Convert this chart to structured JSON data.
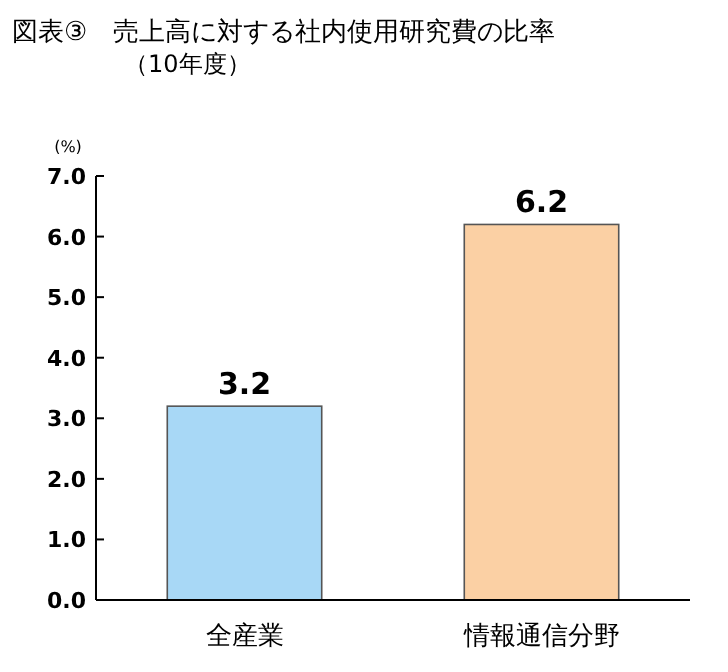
{
  "chart_data": {
    "type": "bar",
    "title": "図表③　売上高に対する社内使用研究費の比率",
    "subtitle": "（10年度）",
    "ylabel": "(%)",
    "categories": [
      "全産業",
      "情報通信分野"
    ],
    "values": [
      3.2,
      6.2
    ],
    "colors": [
      "#a8d8f6",
      "#fbd0a4"
    ],
    "ylim": [
      0,
      7
    ],
    "yticks": [
      {
        "value": 0,
        "label": "0.0"
      },
      {
        "value": 1,
        "label": "1.0"
      },
      {
        "value": 2,
        "label": "2.0"
      },
      {
        "value": 3,
        "label": "3.0"
      },
      {
        "value": 4,
        "label": "4.0"
      },
      {
        "value": 5,
        "label": "5.0"
      },
      {
        "value": 6,
        "label": "6.0"
      },
      {
        "value": 7,
        "label": "7.0"
      }
    ],
    "data_labels": true
  }
}
